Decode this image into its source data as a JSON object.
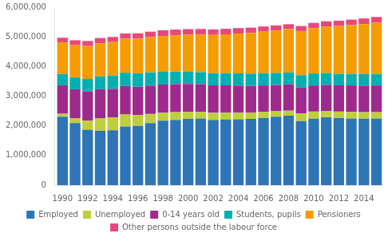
{
  "chart_data": {
    "type": "bar",
    "stacked": true,
    "x": [
      1990,
      1991,
      1992,
      1993,
      1994,
      1995,
      1996,
      1997,
      1998,
      1999,
      2000,
      2001,
      2002,
      2003,
      2004,
      2005,
      2006,
      2007,
      2008,
      2009,
      2010,
      2011,
      2012,
      2013,
      2014,
      2015
    ],
    "xlim": [
      1989.4,
      2015.6
    ],
    "xticks": [
      1990,
      1992,
      1994,
      1996,
      1998,
      2000,
      2002,
      2004,
      2006,
      2008,
      2010,
      2012,
      2014
    ],
    "ylim": [
      0,
      6000000
    ],
    "yticks": [
      0,
      {
        "value": 1000000,
        "label": "1,000,000"
      },
      {
        "value": 2000000,
        "label": "2,000,000"
      },
      {
        "value": 3000000,
        "label": "3,000,000"
      },
      {
        "value": 4000000,
        "label": "4,000,000"
      },
      {
        "value": 5000000,
        "label": "5,000,000"
      },
      {
        "value": 6000000,
        "label": "6,000,000"
      }
    ],
    "grid": false,
    "legend": "bottom",
    "series": [
      {
        "name": "Employed",
        "color": "#2E75B6",
        "values": [
          2310000,
          2090000,
          1860000,
          1830000,
          1850000,
          1980000,
          2000000,
          2090000,
          2170000,
          2200000,
          2230000,
          2250000,
          2200000,
          2210000,
          2220000,
          2230000,
          2270000,
          2310000,
          2340000,
          2160000,
          2240000,
          2290000,
          2270000,
          2250000,
          2240000,
          2250000
        ]
      },
      {
        "name": "Unemployed",
        "color": "#BFCE3A",
        "values": [
          95000,
          170000,
          320000,
          430000,
          430000,
          400000,
          360000,
          310000,
          270000,
          260000,
          240000,
          220000,
          240000,
          240000,
          230000,
          220000,
          200000,
          180000,
          170000,
          260000,
          240000,
          210000,
          210000,
          220000,
          220000,
          210000
        ]
      },
      {
        "name": "0-14 years old",
        "color": "#9E2A8D",
        "values": [
          960000,
          970000,
          980000,
          975000,
          965000,
          960000,
          960000,
          955000,
          950000,
          945000,
          940000,
          935000,
          925000,
          915000,
          905000,
          895000,
          890000,
          885000,
          885000,
          880000,
          880000,
          880000,
          885000,
          890000,
          895000,
          900000
        ]
      },
      {
        "name": "Students, pupils",
        "color": "#00B0B0",
        "values": [
          380000,
          400000,
          420000,
          430000,
          450000,
          450000,
          450000,
          445000,
          430000,
          420000,
          410000,
          405000,
          410000,
          410000,
          415000,
          415000,
          415000,
          410000,
          405000,
          405000,
          405000,
          400000,
          390000,
          385000,
          385000,
          385000
        ]
      },
      {
        "name": "Pensioners",
        "color": "#F59C00",
        "values": [
          1070000,
          1090000,
          1110000,
          1120000,
          1130000,
          1150000,
          1170000,
          1190000,
          1210000,
          1230000,
          1250000,
          1270000,
          1290000,
          1310000,
          1340000,
          1370000,
          1400000,
          1430000,
          1460000,
          1490000,
          1530000,
          1570000,
          1610000,
          1650000,
          1690000,
          1730000
        ]
      },
      {
        "name": "Other persons outside the labour force",
        "color": "#E8497A",
        "values": [
          155000,
          165000,
          170000,
          175000,
          170000,
          175000,
          180000,
          185000,
          190000,
          190000,
          190000,
          185000,
          185000,
          185000,
          185000,
          180000,
          175000,
          170000,
          165000,
          170000,
          175000,
          175000,
          180000,
          185000,
          190000,
          195000
        ]
      }
    ]
  }
}
